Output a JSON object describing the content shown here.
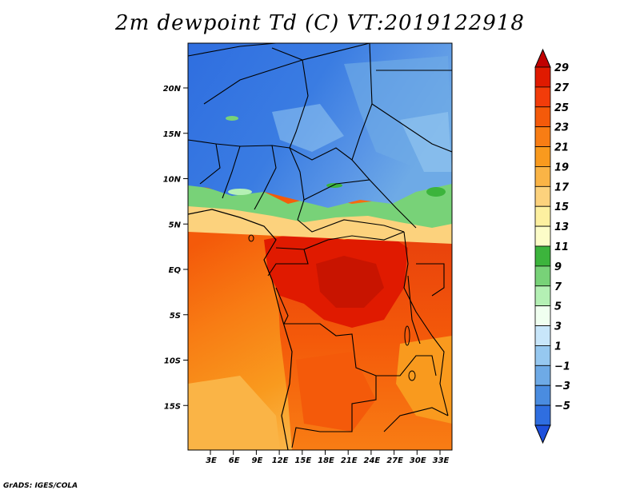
{
  "title": "2m dewpoint Td (C) VT:2019122918",
  "credit": "GrADS: IGES/COLA",
  "lat_labels": [
    "20N",
    "15N",
    "10N",
    "5N",
    "EQ",
    "5S",
    "10S",
    "15S"
  ],
  "lon_labels": [
    "3E",
    "6E",
    "9E",
    "12E",
    "15E",
    "18E",
    "21E",
    "24E",
    "27E",
    "30E",
    "33E"
  ],
  "colorbar": {
    "labels": [
      "29",
      "27",
      "25",
      "23",
      "21",
      "19",
      "17",
      "15",
      "13",
      "11",
      "9",
      "7",
      "5",
      "3",
      "1",
      "−1",
      "−3",
      "−5"
    ],
    "colors": [
      "#c00000",
      "#e01a00",
      "#f23c0a",
      "#f45a0a",
      "#f87d14",
      "#f99a1e",
      "#fab446",
      "#fcd27d",
      "#fdf0a0",
      "#fcfcc8",
      "#3cb43c",
      "#78d278",
      "#b4f0b4",
      "#f0fff0",
      "#c8e6fa",
      "#96c8f0",
      "#6eaae6",
      "#4a8ce0",
      "#2f6ee0",
      "#1e50dc"
    ]
  }
}
